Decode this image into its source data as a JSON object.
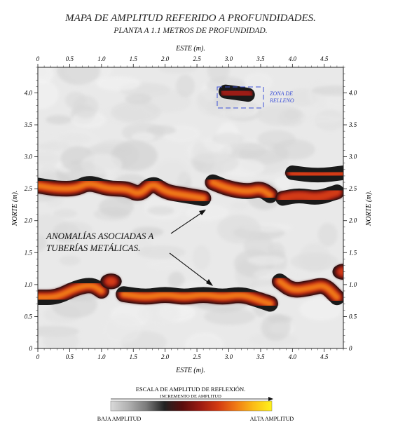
{
  "title": "MAPA DE AMPLITUD REFERIDO A PROFUNDIDADES.",
  "subtitle": "PLANTA A 1.1 METROS DE PROFUNDIDAD.",
  "colors": {
    "background_low": "#e9e9e9",
    "fill_zone": "#3b4fd6",
    "arrow": "#111111"
  },
  "chart_data": {
    "type": "heatmap",
    "xlabel": "ESTE (m).",
    "ylabel": "NORTE (m).",
    "xlim": [
      0,
      4.8
    ],
    "ylim": [
      0,
      4.4
    ],
    "xticks": [
      "0",
      "0.5",
      "1.0",
      "1.5",
      "2.0",
      "2.5",
      "3.0",
      "3.5",
      "4.0",
      "4.5"
    ],
    "yticks": [
      "0",
      "0.5",
      "1.0",
      "1.5",
      "2.0",
      "2.5",
      "3.0",
      "3.5",
      "4.0"
    ],
    "grid": false,
    "color_scale": [
      "#d9d9d9",
      "#b0b0b0",
      "#7a7a7a",
      "#222222",
      "#5a0d0d",
      "#9b1a12",
      "#d33a12",
      "#f07a14",
      "#fbbe17",
      "#fff21a"
    ],
    "anomalies": [
      {
        "label": "upper pipe",
        "points": [
          [
            0.0,
            2.55
          ],
          [
            0.3,
            2.5
          ],
          [
            0.6,
            2.5
          ],
          [
            0.8,
            2.6
          ],
          [
            1.1,
            2.5
          ],
          [
            1.4,
            2.5
          ],
          [
            1.6,
            2.4
          ],
          [
            1.8,
            2.6
          ],
          [
            2.0,
            2.45
          ],
          [
            2.3,
            2.4
          ],
          [
            2.6,
            2.35
          ]
        ],
        "strength": 0.75
      },
      {
        "label": "upper pipe east",
        "points": [
          [
            2.75,
            2.6
          ],
          [
            3.0,
            2.5
          ],
          [
            3.3,
            2.45
          ],
          [
            3.5,
            2.5
          ],
          [
            3.65,
            2.4
          ]
        ],
        "strength": 0.8
      },
      {
        "label": "upper pipe far east",
        "points": [
          [
            3.85,
            2.35
          ],
          [
            4.1,
            2.4
          ],
          [
            4.4,
            2.35
          ],
          [
            4.7,
            2.45
          ]
        ],
        "strength": 0.6
      },
      {
        "label": "upper blobs",
        "points": [
          [
            4.0,
            2.75
          ],
          [
            4.4,
            2.7
          ],
          [
            4.8,
            2.75
          ]
        ],
        "strength": 0.55
      },
      {
        "label": "lower pipe west",
        "points": [
          [
            0.0,
            0.8
          ],
          [
            0.3,
            0.8
          ],
          [
            0.6,
            0.95
          ],
          [
            0.85,
            1.0
          ],
          [
            1.0,
            0.9
          ]
        ],
        "strength": 0.7
      },
      {
        "label": "lower pipe blob",
        "points": [
          [
            1.15,
            1.05
          ]
        ],
        "strength": 0.5
      },
      {
        "label": "lower pipe center",
        "points": [
          [
            1.35,
            0.85
          ],
          [
            1.7,
            0.8
          ],
          [
            2.0,
            0.85
          ],
          [
            2.3,
            0.8
          ],
          [
            2.6,
            0.85
          ],
          [
            2.9,
            0.8
          ],
          [
            3.2,
            0.85
          ],
          [
            3.5,
            0.75
          ],
          [
            3.65,
            0.7
          ]
        ],
        "strength": 0.8
      },
      {
        "label": "lower pipe east",
        "points": [
          [
            3.8,
            1.05
          ],
          [
            4.0,
            0.9
          ],
          [
            4.3,
            0.95
          ],
          [
            4.5,
            1.0
          ],
          [
            4.7,
            0.8
          ]
        ],
        "strength": 0.75
      },
      {
        "label": "lower east blob",
        "points": [
          [
            4.8,
            1.2
          ]
        ],
        "strength": 0.55
      },
      {
        "label": "fill zone",
        "points": [
          [
            2.95,
            4.02
          ],
          [
            3.1,
            4.0
          ],
          [
            3.3,
            3.97
          ]
        ],
        "strength": 0.45
      }
    ]
  },
  "annotations": {
    "zona": "ZONA DE RELLENO",
    "zona_line1": "ZONA DE",
    "zona_line2": "RELLENO",
    "anomaly_line1": "ANOMALÍAS ASOCIADAS A",
    "anomaly_line2": "TUBERÍAS METÁLICAS."
  },
  "colorbar": {
    "title": "ESCALA DE AMPLITUD DE REFLEXIÓN.",
    "increment": "INCREMENTO DE AMPLITUD",
    "low": "BAJA AMPLITUD",
    "high": "ALTA AMPLITUD"
  }
}
